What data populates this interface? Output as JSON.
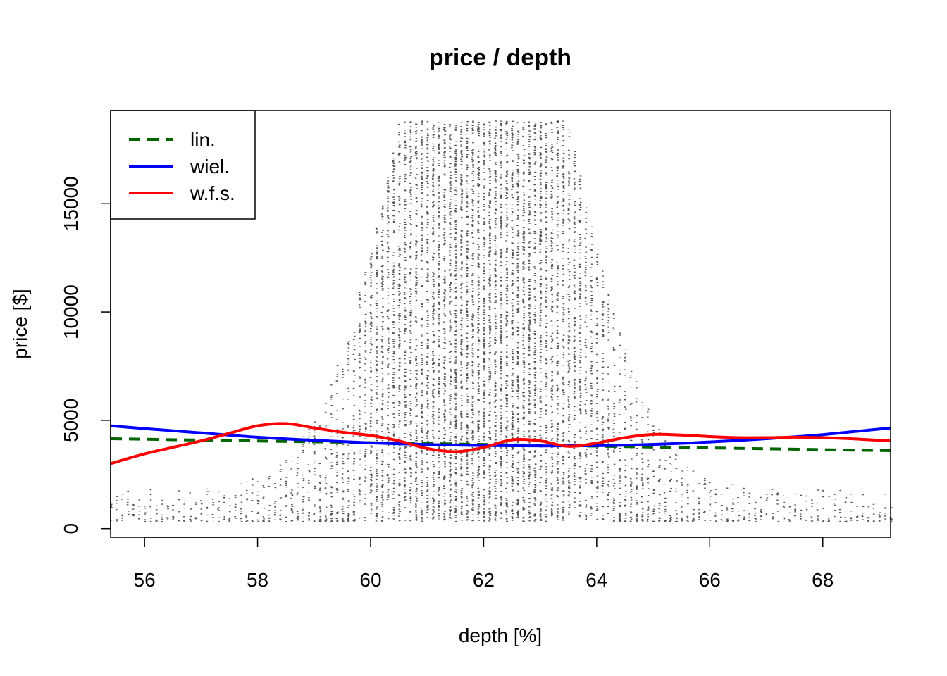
{
  "chart_data": {
    "type": "scatter",
    "title": "price / depth",
    "xlabel": "depth [%]",
    "ylabel": "price [$]",
    "xlim": [
      55.4,
      69.2
    ],
    "ylim": [
      -400,
      19300
    ],
    "x_ticks": [
      56,
      58,
      60,
      62,
      64,
      66,
      68
    ],
    "y_ticks": [
      0,
      5000,
      10000,
      15000
    ],
    "grid": false,
    "legend_position": "top-left",
    "scatter": {
      "point_color": "#555555",
      "description_values": {
        "x_step": 0.1,
        "y_min": 326,
        "y_max": 18823
      }
    },
    "series": [
      {
        "name": "lin.",
        "color": "#006400",
        "style": "dashed",
        "x": [
          55.4,
          69.2
        ],
        "y": [
          4150,
          3600
        ]
      },
      {
        "name": "wiel.",
        "color": "#0000ff",
        "style": "solid",
        "x": [
          55.4,
          56,
          57,
          58,
          59,
          60,
          61,
          62,
          63,
          64,
          65,
          66,
          67,
          68,
          69.2
        ],
        "y": [
          4750,
          4620,
          4420,
          4220,
          4080,
          3960,
          3880,
          3840,
          3820,
          3830,
          3890,
          4000,
          4150,
          4340,
          4650
        ]
      },
      {
        "name": "w.f.s.",
        "color": "#ff0000",
        "style": "solid",
        "x": [
          55.4,
          56,
          56.5,
          57,
          57.5,
          58,
          58.5,
          59,
          59.5,
          60,
          60.5,
          61,
          61.5,
          62,
          62.5,
          63,
          63.5,
          64,
          64.5,
          65,
          65.5,
          66,
          66.5,
          67,
          67.5,
          68,
          68.5,
          69.2
        ],
        "y": [
          3000,
          3450,
          3750,
          4050,
          4400,
          4750,
          4850,
          4650,
          4450,
          4300,
          4050,
          3700,
          3550,
          3750,
          4100,
          4050,
          3800,
          3950,
          4200,
          4350,
          4320,
          4250,
          4200,
          4200,
          4220,
          4200,
          4150,
          4050
        ]
      }
    ]
  }
}
